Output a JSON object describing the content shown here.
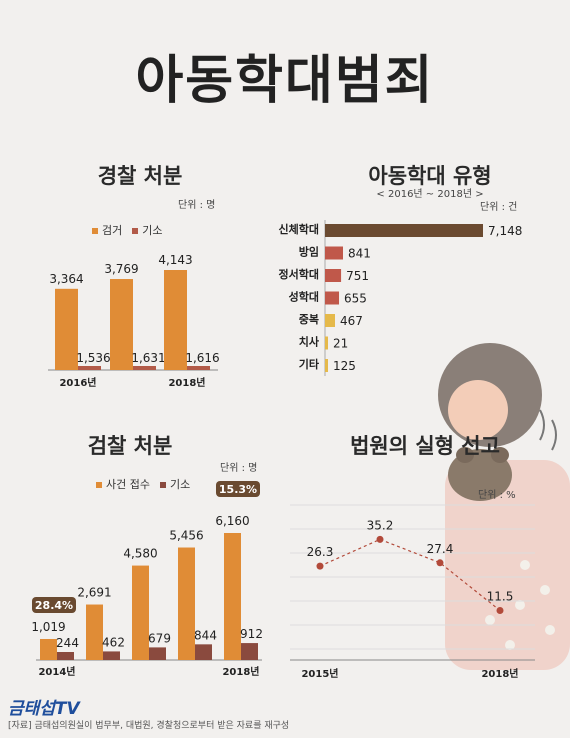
{
  "title": "아동학대범죄",
  "charts": {
    "police": {
      "title": "경찰 처분",
      "unit": "단위 : 명",
      "legend": [
        {
          "label": "검거",
          "color": "#e08c36"
        },
        {
          "label": "기소",
          "color": "#b25a48"
        }
      ]
    },
    "types": {
      "title": "아동학대 유형",
      "subtitle": "< 2016년 ~ 2018년 >",
      "unit": "단위 : 건"
    },
    "prosecution": {
      "title": "검찰 처분",
      "unit": "단위 : 명",
      "legend": [
        {
          "label": "사건 접수",
          "color": "#e08c36"
        },
        {
          "label": "기소",
          "color": "#8a4a3e"
        }
      ],
      "badges": [
        "28.4%",
        "15.3%"
      ]
    },
    "court": {
      "title": "법원의 실형 선고",
      "unit": "단위 : %"
    }
  },
  "chart_data": [
    {
      "type": "bar",
      "title": "경찰 처분",
      "categories": [
        "2016년",
        "",
        "2018년"
      ],
      "series": [
        {
          "name": "검거",
          "values": [
            3364,
            3769,
            4143
          ],
          "color": "#e08c36"
        },
        {
          "name": "기소",
          "values": [
            1536,
            1631,
            1616
          ],
          "color": "#b25a48"
        }
      ],
      "value_labels": {
        "검거": [
          "3,364",
          "3,769",
          "4,143"
        ],
        "기소": [
          "1,536",
          "1,631",
          "1,616"
        ]
      }
    },
    {
      "type": "bar",
      "orientation": "horizontal",
      "title": "아동학대 유형",
      "categories": [
        "신체학대",
        "방임",
        "정서학대",
        "성학대",
        "중복",
        "치사",
        "기타"
      ],
      "values": [
        7148,
        841,
        751,
        655,
        467,
        21,
        125
      ],
      "value_labels": [
        "7,148",
        "841",
        "751",
        "655",
        "467",
        "21",
        "125"
      ],
      "colors": [
        "#6b4a30",
        "#c0584a",
        "#c0584a",
        "#c0584a",
        "#e5b94a",
        "#e5b94a",
        "#e5b94a"
      ]
    },
    {
      "type": "bar",
      "title": "검찰 처분",
      "categories": [
        "2014년",
        "",
        "",
        "",
        "2018년"
      ],
      "series": [
        {
          "name": "사건 접수",
          "values": [
            1019,
            2691,
            4580,
            5456,
            6160
          ],
          "color": "#e08c36"
        },
        {
          "name": "기소",
          "values": [
            244,
            462,
            679,
            844,
            912
          ],
          "color": "#8a4a3e"
        }
      ],
      "value_labels": {
        "사건 접수": [
          "1,019",
          "2,691",
          "4,580",
          "5,456",
          "6,160"
        ],
        "기소": [
          "244",
          "462",
          "679",
          "844",
          "912"
        ]
      }
    },
    {
      "type": "line",
      "title": "법원의 실형 선고",
      "categories": [
        "2015년",
        "",
        "",
        "2018년"
      ],
      "values": [
        26.3,
        35.2,
        27.4,
        11.5
      ],
      "value_labels": [
        "26.3",
        "35.2",
        "27.4",
        "11.5"
      ],
      "color": "#b24a3a"
    }
  ],
  "footer": {
    "logo": "금태섭",
    "logo_tv": "TV",
    "note": "[자료] 금태섭의원실이 법무부, 대법원, 경찰청으로부터 받은 자료를 재구성"
  }
}
